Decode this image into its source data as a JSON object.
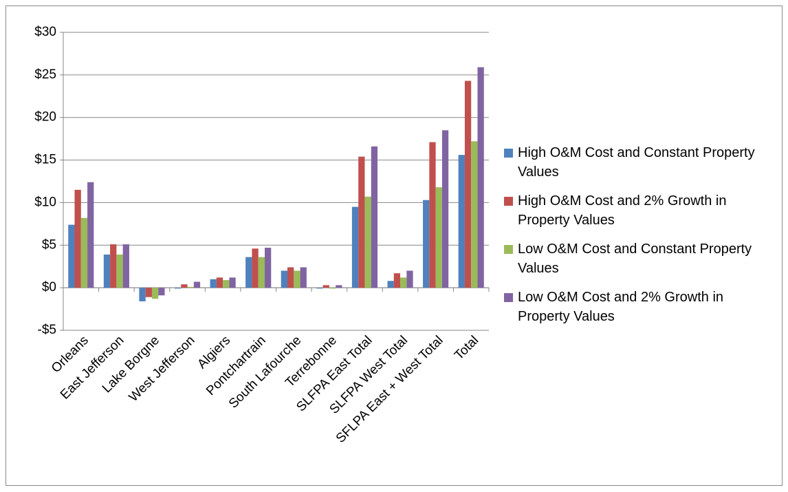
{
  "chart_data": {
    "type": "bar",
    "categories": [
      "Orleans",
      "East Jefferson",
      "Lake Borgne",
      "West Jefferson",
      "Algiers",
      "Pontchartrain",
      "South Lafourche",
      "Terrebonne",
      "SLFPA East Total",
      "SLFPA West Total",
      "SFLPA East + West Total",
      "Total"
    ],
    "series": [
      {
        "name": "High O&M Cost and Constant Property Values",
        "color": "#4f81bd",
        "values": [
          7.4,
          3.9,
          -1.6,
          -0.1,
          1.0,
          3.6,
          2.0,
          -0.1,
          9.5,
          0.8,
          10.3,
          15.6
        ]
      },
      {
        "name": "High O&M Cost and 2% Growth in Property Values",
        "color": "#c0504d",
        "values": [
          11.5,
          5.1,
          -1.1,
          0.4,
          1.2,
          4.6,
          2.4,
          0.3,
          15.4,
          1.7,
          17.1,
          24.3
        ]
      },
      {
        "name": "Low O&M Cost and Constant Property Values",
        "color": "#9bbb59",
        "values": [
          8.2,
          3.9,
          -1.3,
          0.1,
          0.9,
          3.6,
          2.0,
          -0.1,
          10.7,
          1.2,
          11.8,
          17.2
        ]
      },
      {
        "name": "Low O&M Cost and 2% Growth in Property Values",
        "color": "#8064a2",
        "values": [
          12.4,
          5.1,
          -0.9,
          0.7,
          1.2,
          4.7,
          2.4,
          0.3,
          16.6,
          2.0,
          18.5,
          25.9
        ]
      }
    ],
    "ylim": [
      -5,
      30
    ],
    "yticks": [
      {
        "value": -5,
        "label": "-$5"
      },
      {
        "value": 0,
        "label": "$0"
      },
      {
        "value": 5,
        "label": "$5"
      },
      {
        "value": 10,
        "label": "$10"
      },
      {
        "value": 15,
        "label": "$15"
      },
      {
        "value": 20,
        "label": "$20"
      },
      {
        "value": 25,
        "label": "$25"
      },
      {
        "value": 30,
        "label": "$30"
      }
    ],
    "grid": true,
    "legend": "right"
  }
}
